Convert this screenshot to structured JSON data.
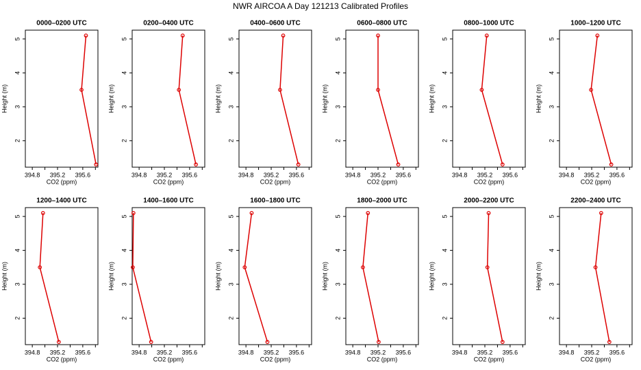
{
  "title": "NWR AIRCOA A  Day 121213  Calibrated Profiles",
  "chart_data": [
    {
      "type": "line",
      "title": "0000–0200 UTC",
      "xlabel": "CO2 (ppm)",
      "ylabel": "Height (m)",
      "color": "#dd0000",
      "x": [
        395.65,
        395.58,
        395.81
      ],
      "y": [
        5.1,
        3.5,
        1.3
      ],
      "xlim": [
        394.69,
        395.84
      ],
      "ylim": [
        1.22,
        5.26
      ],
      "xticks": [
        394.8,
        395.2,
        395.6
      ],
      "xminor_ticks": [
        395.0,
        395.4,
        395.8
      ],
      "yticks": [
        2,
        3,
        4,
        5
      ]
    },
    {
      "type": "line",
      "title": "0200–0400 UTC",
      "xlabel": "CO2 (ppm)",
      "ylabel": "Height (m)",
      "color": "#dd0000",
      "x": [
        395.49,
        395.43,
        395.7
      ],
      "y": [
        5.1,
        3.5,
        1.3
      ],
      "xlim": [
        394.69,
        395.84
      ],
      "ylim": [
        1.22,
        5.26
      ],
      "xticks": [
        394.8,
        395.2,
        395.6
      ],
      "xminor_ticks": [
        395.0,
        395.4,
        395.8
      ],
      "yticks": [
        2,
        3,
        4,
        5
      ]
    },
    {
      "type": "line",
      "title": "0400–0600 UTC",
      "xlabel": "CO2 (ppm)",
      "ylabel": "Height (m)",
      "color": "#dd0000",
      "x": [
        395.39,
        395.34,
        395.63
      ],
      "y": [
        5.1,
        3.5,
        1.3
      ],
      "xlim": [
        394.69,
        395.84
      ],
      "ylim": [
        1.22,
        5.26
      ],
      "xticks": [
        394.8,
        395.2,
        395.6
      ],
      "xminor_ticks": [
        395.0,
        395.4,
        395.8
      ],
      "yticks": [
        2,
        3,
        4,
        5
      ]
    },
    {
      "type": "line",
      "title": "0600–0800 UTC",
      "xlabel": "CO2 (ppm)",
      "ylabel": "Height (m)",
      "color": "#dd0000",
      "x": [
        395.2,
        395.2,
        395.52
      ],
      "y": [
        5.1,
        3.5,
        1.3
      ],
      "xlim": [
        394.69,
        395.84
      ],
      "ylim": [
        1.22,
        5.26
      ],
      "xticks": [
        394.8,
        395.2,
        395.6
      ],
      "xminor_ticks": [
        395.0,
        395.4,
        395.8
      ],
      "yticks": [
        2,
        3,
        4,
        5
      ]
    },
    {
      "type": "line",
      "title": "0800–1000 UTC",
      "xlabel": "CO2 (ppm)",
      "ylabel": "Height (m)",
      "color": "#dd0000",
      "x": [
        395.23,
        395.15,
        395.48
      ],
      "y": [
        5.1,
        3.5,
        1.3
      ],
      "xlim": [
        394.69,
        395.84
      ],
      "ylim": [
        1.22,
        5.26
      ],
      "xticks": [
        394.8,
        395.2,
        395.6
      ],
      "xminor_ticks": [
        395.0,
        395.4,
        395.8
      ],
      "yticks": [
        2,
        3,
        4,
        5
      ]
    },
    {
      "type": "line",
      "title": "1000–1200 UTC",
      "xlabel": "CO2 (ppm)",
      "ylabel": "Height (m)",
      "color": "#dd0000",
      "x": [
        395.29,
        395.19,
        395.51
      ],
      "y": [
        5.1,
        3.5,
        1.3
      ],
      "xlim": [
        394.69,
        395.84
      ],
      "ylim": [
        1.22,
        5.26
      ],
      "xticks": [
        394.8,
        395.2,
        395.6
      ],
      "xminor_ticks": [
        395.0,
        395.4,
        395.8
      ],
      "yticks": [
        2,
        3,
        4,
        5
      ]
    },
    {
      "type": "line",
      "title": "1200–1400 UTC",
      "xlabel": "CO2 (ppm)",
      "ylabel": "Height (m)",
      "color": "#dd0000",
      "x": [
        394.97,
        394.92,
        395.22
      ],
      "y": [
        5.1,
        3.5,
        1.3
      ],
      "xlim": [
        394.69,
        395.84
      ],
      "ylim": [
        1.22,
        5.26
      ],
      "xticks": [
        394.8,
        395.2,
        395.6
      ],
      "xminor_ticks": [
        395.0,
        395.4,
        395.8
      ],
      "yticks": [
        2,
        3,
        4,
        5
      ]
    },
    {
      "type": "line",
      "title": "1400–1600 UTC",
      "xlabel": "CO2 (ppm)",
      "ylabel": "Height (m)",
      "color": "#dd0000",
      "x": [
        394.71,
        394.7,
        394.99
      ],
      "y": [
        5.1,
        3.5,
        1.3
      ],
      "xlim": [
        394.69,
        395.84
      ],
      "ylim": [
        1.22,
        5.26
      ],
      "xticks": [
        394.8,
        395.2,
        395.6
      ],
      "xminor_ticks": [
        395.0,
        395.4,
        395.8
      ],
      "yticks": [
        2,
        3,
        4,
        5
      ]
    },
    {
      "type": "line",
      "title": "1600–1800 UTC",
      "xlabel": "CO2 (ppm)",
      "ylabel": "Height (m)",
      "color": "#dd0000",
      "x": [
        394.89,
        394.78,
        395.14
      ],
      "y": [
        5.1,
        3.5,
        1.3
      ],
      "xlim": [
        394.69,
        395.84
      ],
      "ylim": [
        1.22,
        5.26
      ],
      "xticks": [
        394.8,
        395.2,
        395.6
      ],
      "xminor_ticks": [
        395.0,
        395.4,
        395.8
      ],
      "yticks": [
        2,
        3,
        4,
        5
      ]
    },
    {
      "type": "line",
      "title": "1800–2000 UTC",
      "xlabel": "CO2 (ppm)",
      "ylabel": "Height (m)",
      "color": "#dd0000",
      "x": [
        395.04,
        394.96,
        395.21
      ],
      "y": [
        5.1,
        3.5,
        1.3
      ],
      "xlim": [
        394.69,
        395.84
      ],
      "ylim": [
        1.22,
        5.26
      ],
      "xticks": [
        394.8,
        395.2,
        395.6
      ],
      "xminor_ticks": [
        395.0,
        395.4,
        395.8
      ],
      "yticks": [
        2,
        3,
        4,
        5
      ]
    },
    {
      "type": "line",
      "title": "2000–2200 UTC",
      "xlabel": "CO2 (ppm)",
      "ylabel": "Height (m)",
      "color": "#dd0000",
      "x": [
        395.26,
        395.24,
        395.48
      ],
      "y": [
        5.1,
        3.5,
        1.3
      ],
      "xlim": [
        394.69,
        395.84
      ],
      "ylim": [
        1.22,
        5.26
      ],
      "xticks": [
        394.8,
        395.2,
        395.6
      ],
      "xminor_ticks": [
        395.0,
        395.4,
        395.8
      ],
      "yticks": [
        2,
        3,
        4,
        5
      ]
    },
    {
      "type": "line",
      "title": "2200–2400 UTC",
      "xlabel": "CO2 (ppm)",
      "ylabel": "Height (m)",
      "color": "#dd0000",
      "x": [
        395.35,
        395.26,
        395.48
      ],
      "y": [
        5.1,
        3.5,
        1.3
      ],
      "xlim": [
        394.69,
        395.84
      ],
      "ylim": [
        1.22,
        5.26
      ],
      "xticks": [
        394.8,
        395.2,
        395.6
      ],
      "xminor_ticks": [
        395.0,
        395.4,
        395.8
      ],
      "yticks": [
        2,
        3,
        4,
        5
      ]
    }
  ]
}
